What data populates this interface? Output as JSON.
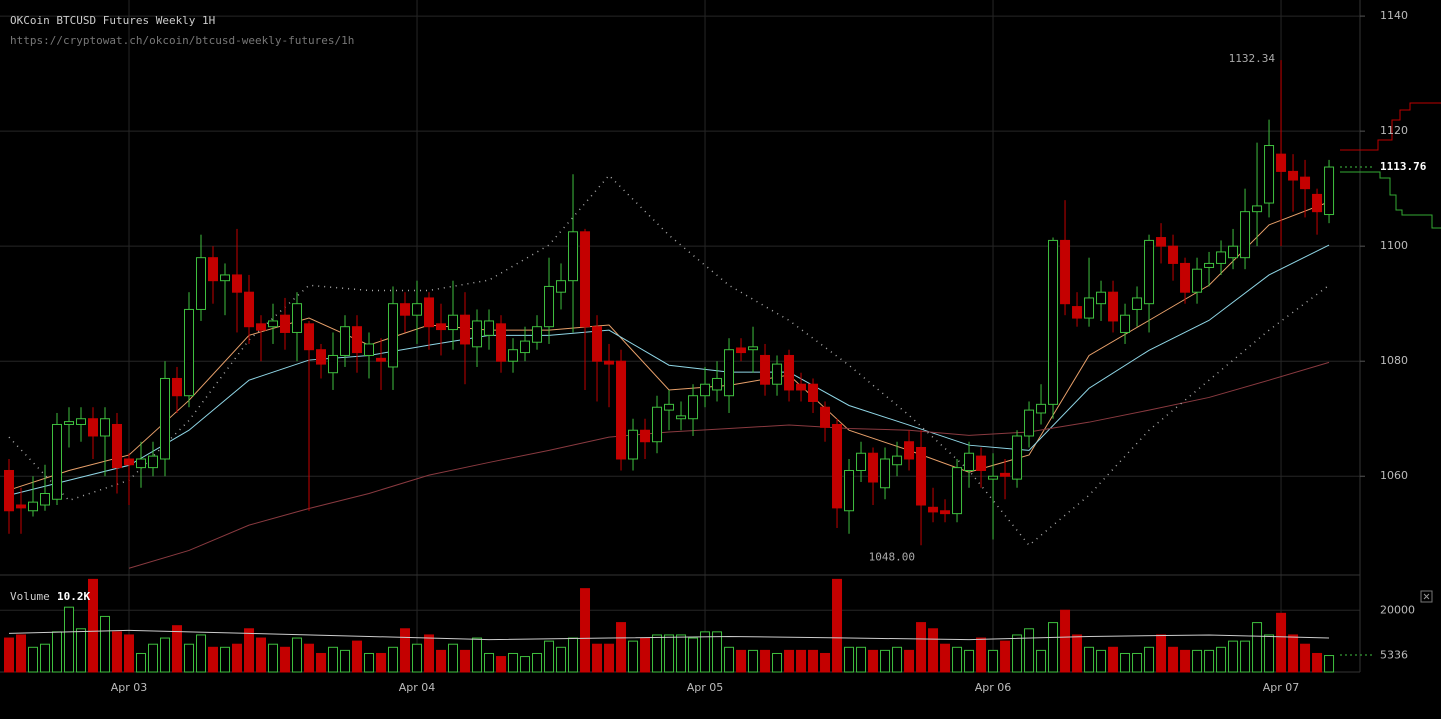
{
  "chart_data": [
    {
      "type": "candlestick",
      "title": "OKCoin BTCUSD Futures Weekly 1H",
      "subtitle": "https://cryptowat.ch/okcoin/btcusd-weekly-futures/1h",
      "xlim": [
        -0.75,
        112.58
      ],
      "xticks": [
        {
          "value": 10,
          "label": "Apr 03"
        },
        {
          "value": 34,
          "label": "Apr 04"
        },
        {
          "value": 58,
          "label": "Apr 05"
        },
        {
          "value": 82,
          "label": "Apr 06"
        },
        {
          "value": 106,
          "label": "Apr 07"
        }
      ],
      "ylim": [
        1043.7,
        1142.8
      ],
      "yticks": [
        1060,
        1080,
        1100,
        1120,
        1140
      ],
      "grid": true,
      "up_color": "#3fbf3f",
      "down_color": "#c40000",
      "extremes": {
        "high": "1132.34",
        "low": "1048.00"
      },
      "open": [
        1061,
        1055,
        1054,
        1055,
        1056,
        1069,
        1069,
        1070,
        1067,
        1069,
        1063,
        1061.5,
        1061.5,
        1063,
        1077,
        1074,
        1089,
        1098,
        1094,
        1095,
        1092,
        1086.5,
        1086,
        1088,
        1085,
        1086.5,
        1082,
        1078,
        1081,
        1086,
        1081,
        1080.5,
        1079,
        1090,
        1088,
        1091,
        1086.5,
        1085.5,
        1088,
        1082.5,
        1084.5,
        1086.5,
        1080,
        1081.5,
        1083.3,
        1086,
        1092,
        1094,
        1102.5,
        1086,
        1080,
        1080,
        1063,
        1068,
        1066,
        1071.5,
        1070,
        1070,
        1074,
        1075,
        1074,
        1082.3,
        1082,
        1081,
        1076,
        1081,
        1076,
        1076,
        1072,
        1069,
        1054,
        1061,
        1064,
        1058,
        1062,
        1066,
        1065,
        1054.6,
        1054,
        1053.5,
        1061,
        1063.5,
        1059.5,
        1060.5,
        1059.5,
        1067,
        1071,
        1072.5,
        1101,
        1089.5,
        1087.5,
        1090,
        1092,
        1085,
        1089,
        1090,
        1101.5,
        1100,
        1097,
        1092,
        1096.3,
        1097,
        1098,
        1098,
        1106,
        1107.5,
        1116,
        1113,
        1112,
        1109,
        1105.5
      ],
      "high": [
        1063,
        1058,
        1060,
        1062,
        1071,
        1072,
        1072,
        1072,
        1072,
        1071,
        1064,
        1066,
        1066,
        1080,
        1079,
        1092,
        1102,
        1100,
        1097,
        1103,
        1095,
        1088,
        1090,
        1091,
        1092,
        1087,
        1083,
        1085,
        1088,
        1088,
        1085,
        1084,
        1093,
        1092,
        1094,
        1092,
        1090,
        1094,
        1092,
        1089,
        1089,
        1088,
        1084,
        1086,
        1088,
        1098,
        1097,
        1112.5,
        1103,
        1088,
        1083,
        1082,
        1070,
        1070,
        1074,
        1075,
        1073,
        1076,
        1079,
        1080,
        1084,
        1084,
        1086,
        1083,
        1081,
        1082,
        1078,
        1077,
        1073,
        1070,
        1063,
        1066,
        1065,
        1065,
        1066,
        1068,
        1068,
        1058,
        1056,
        1063,
        1066,
        1065,
        1064,
        1063,
        1068,
        1073,
        1076,
        1101.5,
        1108,
        1092,
        1098,
        1094,
        1094,
        1090,
        1093,
        1102,
        1104,
        1102,
        1098,
        1098,
        1099,
        1101,
        1103,
        1110,
        1118,
        1122,
        1132.34,
        1116,
        1115,
        1110,
        1115
      ],
      "low": [
        1050,
        1050,
        1053,
        1054,
        1055,
        1065,
        1066,
        1063,
        1060,
        1057,
        1055,
        1058,
        1060,
        1060,
        1071,
        1072,
        1087,
        1090,
        1088,
        1085,
        1083,
        1080,
        1083,
        1082,
        1080,
        1054,
        1077,
        1075,
        1079,
        1078,
        1077,
        1075,
        1075,
        1085,
        1083,
        1082,
        1081,
        1082,
        1076,
        1079,
        1082,
        1078,
        1078,
        1080,
        1082,
        1083,
        1089,
        1085,
        1075,
        1073,
        1072,
        1061,
        1061,
        1063,
        1064,
        1068,
        1068,
        1067,
        1072,
        1073,
        1071,
        1080,
        1078,
        1074,
        1074,
        1073,
        1073,
        1071,
        1066,
        1051,
        1050,
        1059,
        1055,
        1056,
        1060,
        1061,
        1048,
        1052,
        1052,
        1052,
        1058,
        1058,
        1049,
        1056,
        1058,
        1065,
        1069,
        1070,
        1088,
        1086,
        1086,
        1087,
        1085,
        1083,
        1086,
        1085,
        1097,
        1094,
        1090,
        1090,
        1093,
        1095,
        1096,
        1096,
        1100,
        1105,
        1100,
        1106,
        1105,
        1102,
        1104
      ],
      "close": [
        1054,
        1054.5,
        1055.5,
        1057,
        1069,
        1069.5,
        1070,
        1067,
        1070,
        1061.5,
        1062,
        1063,
        1063.5,
        1077,
        1074,
        1089,
        1098,
        1094,
        1095,
        1092,
        1086,
        1085.4,
        1087,
        1085,
        1090,
        1082,
        1079.5,
        1081,
        1086,
        1081.5,
        1083,
        1080,
        1090,
        1088,
        1090,
        1086,
        1085.5,
        1088,
        1083,
        1087,
        1087,
        1080,
        1082,
        1083.5,
        1086,
        1093,
        1094,
        1102.5,
        1086,
        1080,
        1079.5,
        1063,
        1068,
        1066,
        1072,
        1072.5,
        1070.5,
        1074,
        1076,
        1077,
        1082,
        1081.5,
        1082.5,
        1076,
        1079.5,
        1075,
        1075,
        1073,
        1068.5,
        1054.5,
        1061,
        1064,
        1059,
        1063,
        1063.5,
        1063,
        1055,
        1053.8,
        1053.5,
        1061.5,
        1064,
        1061,
        1060,
        1060,
        1067,
        1071.5,
        1072.5,
        1101,
        1090,
        1087.5,
        1091,
        1092,
        1087,
        1088,
        1091,
        1101,
        1100,
        1097,
        1092,
        1096,
        1097,
        1099,
        1100,
        1106,
        1107,
        1117.5,
        1113,
        1111.5,
        1110,
        1106,
        1113.76
      ],
      "overlays": [
        {
          "color": "#e8a06a",
          "dashed": false,
          "x": [
            0,
            5,
            10,
            15,
            20,
            25,
            30,
            35,
            40,
            45,
            50,
            55,
            60,
            65,
            70,
            75,
            80,
            85,
            90,
            95,
            100,
            105,
            110
          ],
          "values": [
            1057.6,
            1061,
            1063.7,
            1073.2,
            1084.5,
            1087.5,
            1082.8,
            1086.3,
            1085.4,
            1085.4,
            1086.3,
            1075,
            1075.8,
            1077.6,
            1068,
            1064.5,
            1060.7,
            1063.7,
            1081,
            1087.1,
            1093.2,
            1103.7,
            1107.7
          ]
        },
        {
          "color": "#8fd6e6",
          "dashed": false,
          "x": [
            0,
            5,
            10,
            15,
            20,
            25,
            30,
            35,
            40,
            45,
            50,
            55,
            60,
            65,
            70,
            75,
            80,
            85,
            90,
            95,
            100,
            105,
            110
          ],
          "values": [
            1056.7,
            1059.3,
            1061.9,
            1068,
            1076.7,
            1080.2,
            1081,
            1082.8,
            1084.5,
            1084.5,
            1085.4,
            1079.3,
            1078.1,
            1078.1,
            1072.3,
            1068.9,
            1065.4,
            1064.5,
            1075.3,
            1081.9,
            1087.1,
            1095,
            1100.2
          ]
        },
        {
          "color": "#8a3a40",
          "dashed": false,
          "x": [
            10,
            15,
            20,
            25,
            30,
            35,
            40,
            45,
            50,
            55,
            60,
            65,
            70,
            75,
            80,
            85,
            90,
            95,
            100,
            105,
            110
          ],
          "values": [
            1044,
            1047.1,
            1051.5,
            1054.4,
            1057,
            1060.2,
            1062.4,
            1064.5,
            1066.8,
            1067.7,
            1068.3,
            1068.9,
            1068.3,
            1068,
            1067.1,
            1067.7,
            1069.4,
            1071.5,
            1073.7,
            1076.7,
            1079.8
          ]
        },
        {
          "color": "#aaaaaa",
          "dashed": true,
          "x": [
            0,
            5,
            10,
            15,
            20,
            25,
            30,
            35,
            40,
            45,
            50,
            55,
            60,
            65,
            70,
            75,
            80,
            85,
            90,
            95,
            100,
            105,
            110
          ],
          "values": [
            1066.8,
            1055.8,
            1059.3,
            1069.7,
            1083.7,
            1093.2,
            1092.3,
            1092.3,
            1094.1,
            1100.2,
            1112.3,
            1101.9,
            1093.2,
            1087.1,
            1079.3,
            1070.6,
            1061,
            1048,
            1056.7,
            1068,
            1076.7,
            1085.4,
            1093.2
          ]
        }
      ]
    },
    {
      "type": "bar",
      "title": "Volume",
      "value_text": "10.2K",
      "ylim": [
        0,
        29800
      ],
      "yticks": [
        20000
      ],
      "values": [
        11000,
        12000,
        8000,
        9000,
        13000,
        21000,
        14000,
        30000,
        18000,
        13000,
        12000,
        6000,
        9000,
        11000,
        15000,
        9000,
        12000,
        8000,
        8000,
        9000,
        14000,
        11000,
        9000,
        8000,
        11000,
        9000,
        6000,
        8000,
        7000,
        10000,
        6000,
        6000,
        8000,
        14000,
        9000,
        12000,
        7000,
        9000,
        7000,
        11000,
        6000,
        5000,
        6000,
        5000,
        6000,
        10000,
        8000,
        11000,
        27000,
        9000,
        9000,
        16000,
        10000,
        11000,
        12000,
        12000,
        12000,
        11000,
        13000,
        13000,
        8000,
        7000,
        7000,
        7000,
        6000,
        7000,
        7000,
        7000,
        6000,
        30000,
        8000,
        8000,
        7000,
        7000,
        8000,
        7000,
        16000,
        14000,
        9000,
        8000,
        7000,
        11000,
        7000,
        10000,
        12000,
        14000,
        7000,
        16000,
        20000,
        12000,
        8000,
        7000,
        8000,
        6000,
        6000,
        8000,
        12000,
        8000,
        7000,
        7000,
        7000,
        8000,
        10000,
        10000,
        16000,
        12000,
        19000,
        12000,
        9000,
        6000,
        5336
      ],
      "overlays": [
        {
          "color": "#cccccc",
          "dashed": false,
          "x": [
            0,
            10,
            20,
            30,
            40,
            50,
            60,
            70,
            80,
            90,
            100,
            110
          ],
          "values": [
            12500,
            13500,
            12500,
            11500,
            10500,
            11000,
            11500,
            11000,
            10500,
            11500,
            12000,
            11000
          ]
        }
      ]
    }
  ]
}
